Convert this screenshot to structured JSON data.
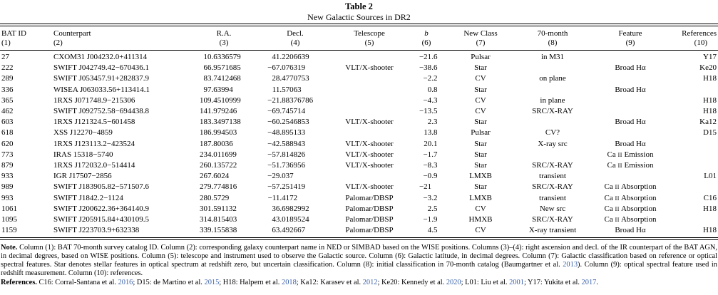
{
  "page": {
    "title": "Table 2",
    "subtitle": "New Galactic Sources in DR2"
  },
  "colors": {
    "link_blue": "#3b62a9",
    "text": "#000000",
    "background": "#ffffff",
    "rule": "#000000"
  },
  "table": {
    "columns": [
      {
        "key": "bat-id",
        "label": "BAT ID",
        "num": "(1)",
        "align": "left"
      },
      {
        "key": "counterpart",
        "label": "Counterpart",
        "num": "(2)",
        "align": "left"
      },
      {
        "key": "ra",
        "label": "R.A.",
        "num": "(3)",
        "align": "decimal"
      },
      {
        "key": "decl",
        "label": "Decl.",
        "num": "(4)",
        "align": "decimal"
      },
      {
        "key": "telescope",
        "label": "Telescope",
        "num": "(5)",
        "align": "center"
      },
      {
        "key": "b",
        "label": "b",
        "num": "(6)",
        "align": "decimal",
        "italic": true
      },
      {
        "key": "new-class",
        "label": "New Class",
        "num": "(7)",
        "align": "center"
      },
      {
        "key": "70-month",
        "label": "70-month",
        "num": "(8)",
        "align": "center"
      },
      {
        "key": "feature",
        "label": "Feature",
        "num": "(9)",
        "align": "center"
      },
      {
        "key": "references",
        "label": "References",
        "num": "(10)",
        "align": "right"
      }
    ],
    "rows": [
      [
        "27",
        "CXOM31 J004232.0+411314",
        "10.6336579",
        "41.2206639",
        "",
        "−21.6",
        "Pulsar",
        "in M31",
        "",
        "Y17"
      ],
      [
        "222",
        "SWIFT J042749.42−670436.1",
        "66.9571685",
        "−67.076319",
        "VLT/X-shooter",
        "−38.6",
        "Star",
        "",
        "Broad Hα",
        "Ke20"
      ],
      [
        "289",
        "SWIFT J053457.91+282837.9",
        "83.7412468",
        "28.4770753",
        "",
        "−2.2",
        "CV",
        "on plane",
        "",
        "H18"
      ],
      [
        "336",
        "WISEA J063033.56+113414.1",
        "97.63994",
        "11.57063",
        "",
        "0.8",
        "Star",
        "",
        "Broad Hα",
        ""
      ],
      [
        "365",
        "1RXS J071748.9−215306",
        "109.4510999",
        "−21.88376786",
        "",
        "−4.3",
        "CV",
        "in plane",
        "",
        "H18"
      ],
      [
        "462",
        "SWIFT J092752.58−694438.8",
        "141.979246",
        "−69.745714",
        "",
        "−13.5",
        "CV",
        "SRC/X-RAY",
        "",
        "H18"
      ],
      [
        "603",
        "1RXS J121324.5−601458",
        "183.3497138",
        "−60.2546853",
        "VLT/X-shooter",
        "2.3",
        "Star",
        "",
        "Broad Hα",
        "Ka12"
      ],
      [
        "618",
        "XSS J12270−4859",
        "186.994503",
        "−48.895133",
        "",
        "13.8",
        "Pulsar",
        "CV?",
        "",
        "D15"
      ],
      [
        "620",
        "1RXS J123113.2−423524",
        "187.80036",
        "−42.588943",
        "VLT/X-shooter",
        "20.1",
        "Star",
        "X-ray src",
        "Broad Hα",
        ""
      ],
      [
        "773",
        "IRAS 15318−5740",
        "234.011699",
        "−57.814826",
        "VLT/X-shooter",
        "−1.7",
        "Star",
        "",
        "Ca II Emission",
        ""
      ],
      [
        "879",
        "1RXS J172032.0−514414",
        "260.135722",
        "−51.736956",
        "VLT/X-shooter",
        "−8.3",
        "Star",
        "SRC/X-RAY",
        "Ca II Emission",
        ""
      ],
      [
        "933",
        "IGR J17507−2856",
        "267.6024",
        "−29.037",
        "",
        "−0.9",
        "LMXB",
        "transient",
        "",
        "L01"
      ],
      [
        "989",
        "SWIFT J183905.82−571507.6",
        "279.774816",
        "−57.251419",
        "VLT/X-shooter",
        "−21",
        "Star",
        "SRC/X-RAY",
        "Ca II Absorption",
        ""
      ],
      [
        "993",
        "SWIFT J1842.2−1124",
        "280.5729",
        "−11.4172",
        "Palomar/DBSP",
        "−3.2",
        "LMXB",
        "transient",
        "Ca II Absorption",
        "C16"
      ],
      [
        "1061",
        "SWIFT J200622.36+364140.9",
        "301.591132",
        "36.6982992",
        "Palomar/DBSP",
        "2.5",
        "CV",
        "New src",
        "Ca II Absorption",
        "H18"
      ],
      [
        "1095",
        "SWIFT J205915.84+430109.5",
        "314.815403",
        "43.0189524",
        "Palomar/DBSP",
        "−1.9",
        "HMXB",
        "SRC/X-RAY",
        "Ca II Absorption",
        ""
      ],
      [
        "1159",
        "SWIFT J223703.9+632338",
        "339.155838",
        "63.492667",
        "Palomar/DBSP",
        "4.5",
        "CV",
        "X-ray transient",
        "Broad Hα",
        "H18"
      ]
    ]
  },
  "note": {
    "segments": [
      {
        "text": "Note.",
        "bold": true
      },
      {
        "text": " Column (1): BAT 70-month survey catalog ID. Column (2): corresponding galaxy counterpart name in NED or SIMBAD based on the WISE positions. Columns (3)–(4): right ascension and decl. of the IR counterpart of the BAT AGN, in decimal degrees, based on WISE positions. Column (5): telescope and instrument used to observe the Galactic source. Column (6): Galactic latitude, in decimal degrees. Column (7): Galactic classification based on reference or optical spectral features. Star denotes stellar features in optical spectrum at redshift zero, but uncertain classification. Column (8): initial classification in 70-month catalog (Baumgartner et al. "
      },
      {
        "text": "2013",
        "link": true
      },
      {
        "text": "). Column (9): optical spectral feature used in redshift measurement. Column (10): references."
      }
    ]
  },
  "references_line": {
    "segments": [
      {
        "text": "References.",
        "bold": true
      },
      {
        "text": " C16: Corral-Santana et al. "
      },
      {
        "text": "2016",
        "link": true
      },
      {
        "text": "; D15: de Martino et al. "
      },
      {
        "text": "2015",
        "link": true
      },
      {
        "text": "; H18: Halpern et al. "
      },
      {
        "text": "2018",
        "link": true
      },
      {
        "text": "; Ka12: Karasev et al. "
      },
      {
        "text": "2012",
        "link": true
      },
      {
        "text": "; Ke20: Kennedy et al. "
      },
      {
        "text": "2020",
        "link": true
      },
      {
        "text": "; L01: Liu et al. "
      },
      {
        "text": "2001",
        "link": true
      },
      {
        "text": "; Y17: Yukita et al. "
      },
      {
        "text": "2017",
        "link": true
      },
      {
        "text": "."
      }
    ]
  }
}
